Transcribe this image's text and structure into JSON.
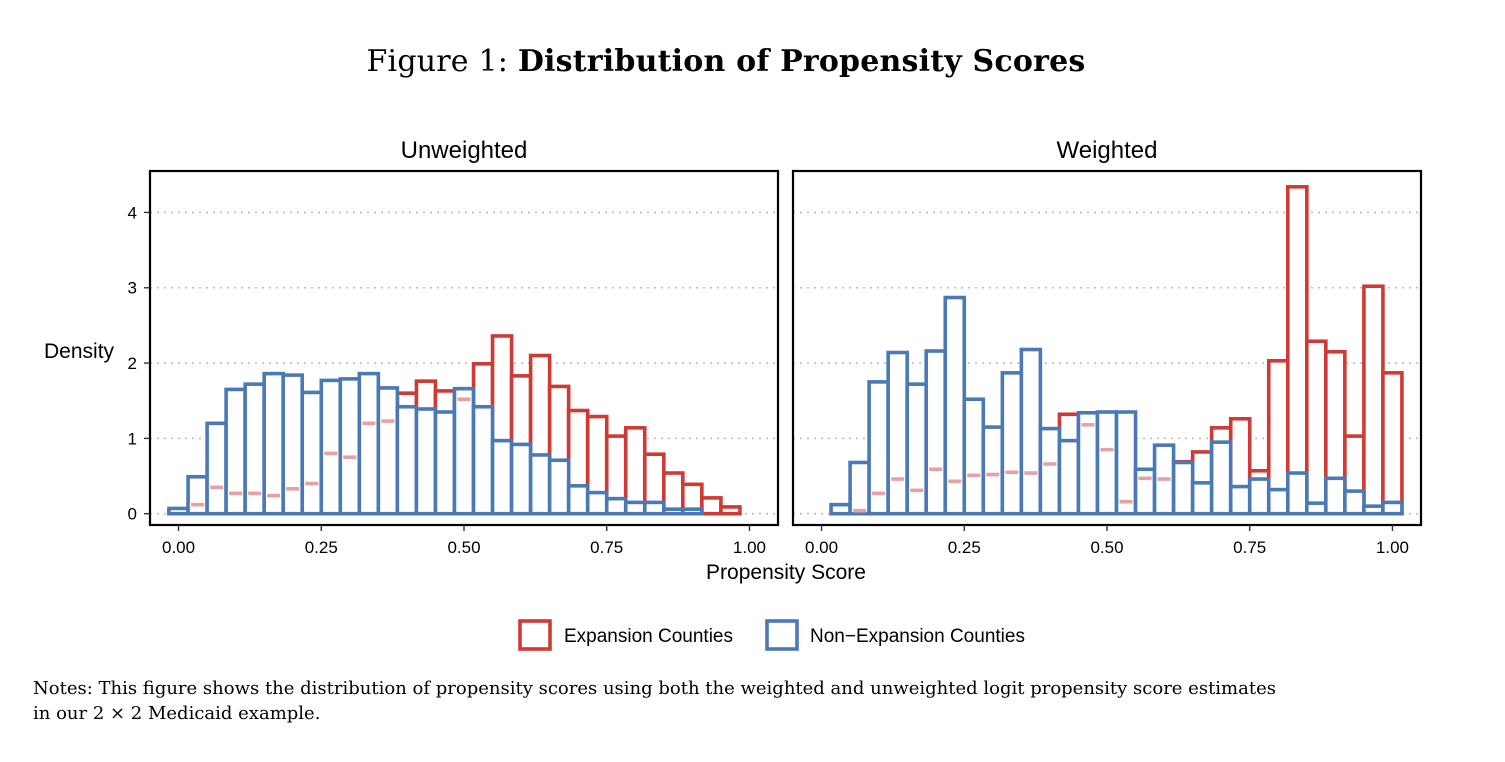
{
  "figure": {
    "prefix": "Figure 1:",
    "title": "Distribution of Propensity Scores",
    "notes_line1": "Notes: This figure shows the distribution of propensity scores using both the weighted and unweighted logit propensity score estimates",
    "notes_line2": "in our 2 × 2 Medicaid example."
  },
  "chart_data": {
    "type": "histogram",
    "shared_y_label": "Density",
    "shared_x_label": "Propensity Score",
    "xlim": [
      -0.05,
      1.05
    ],
    "ylim": [
      -0.15,
      4.55
    ],
    "x_ticks": [
      0.0,
      0.25,
      0.5,
      0.75,
      1.0
    ],
    "x_tick_labels": [
      "0.00",
      "0.25",
      "0.50",
      "0.75",
      "1.00"
    ],
    "y_ticks": [
      0,
      1,
      2,
      3,
      4
    ],
    "y_tick_labels": [
      "0",
      "1",
      "2",
      "3",
      "4"
    ],
    "grid": "horizontal dotted",
    "legend_position": "bottom",
    "bins_left_edges": [
      -0.0167,
      0.0167,
      0.05,
      0.0833,
      0.1167,
      0.15,
      0.1833,
      0.2167,
      0.25,
      0.2833,
      0.3167,
      0.35,
      0.3833,
      0.4167,
      0.45,
      0.4833,
      0.5167,
      0.55,
      0.5833,
      0.6167,
      0.65,
      0.6833,
      0.7167,
      0.75,
      0.7833,
      0.8167,
      0.85,
      0.8833,
      0.9167,
      0.95,
      0.9833
    ],
    "bin_width": 0.0333,
    "series_names": [
      "Expansion Counties",
      "Non−Expansion Counties"
    ],
    "series_colors": [
      "#d03a35",
      "#4a7ab5"
    ],
    "overlap_color": "#e8a19e",
    "panels": [
      {
        "title": "Unweighted",
        "series": [
          {
            "name": "Expansion Counties",
            "color": "#d03a35",
            "values": [
              0.05,
              0.12,
              0.35,
              0.27,
              0.27,
              0.24,
              0.33,
              0.4,
              0.8,
              0.75,
              1.2,
              1.23,
              1.6,
              1.76,
              1.63,
              1.52,
              1.99,
              2.36,
              1.83,
              2.1,
              1.69,
              1.37,
              1.29,
              1.03,
              1.14,
              0.79,
              0.54,
              0.39,
              0.21,
              0.09,
              0.0
            ]
          },
          {
            "name": "Non−Expansion Counties",
            "color": "#4a7ab5",
            "values": [
              0.07,
              0.49,
              1.2,
              1.65,
              1.72,
              1.86,
              1.84,
              1.61,
              1.77,
              1.79,
              1.86,
              1.67,
              1.42,
              1.39,
              1.35,
              1.66,
              1.42,
              0.97,
              0.92,
              0.78,
              0.71,
              0.37,
              0.28,
              0.2,
              0.15,
              0.15,
              0.06,
              0.06,
              0.0,
              0.0,
              0.0
            ]
          }
        ]
      },
      {
        "title": "Weighted",
        "series": [
          {
            "name": "Expansion Counties",
            "color": "#d03a35",
            "values": [
              0.0,
              0.0,
              0.04,
              0.27,
              0.46,
              0.31,
              0.59,
              0.43,
              0.51,
              0.52,
              0.55,
              0.54,
              0.66,
              1.32,
              1.18,
              0.85,
              0.16,
              0.47,
              0.46,
              0.69,
              0.82,
              1.14,
              1.26,
              0.57,
              2.03,
              4.34,
              2.29,
              2.15,
              1.03,
              3.02,
              1.87
            ]
          },
          {
            "name": "Non−Expansion Counties",
            "color": "#4a7ab5",
            "values": [
              0.0,
              0.12,
              0.68,
              1.75,
              2.14,
              1.72,
              2.16,
              2.87,
              1.52,
              1.15,
              1.87,
              2.18,
              1.13,
              0.97,
              1.34,
              1.35,
              1.35,
              0.59,
              0.91,
              0.68,
              0.41,
              0.95,
              0.36,
              0.46,
              0.32,
              0.54,
              0.14,
              0.47,
              0.3,
              0.1,
              0.15
            ]
          }
        ]
      }
    ]
  }
}
